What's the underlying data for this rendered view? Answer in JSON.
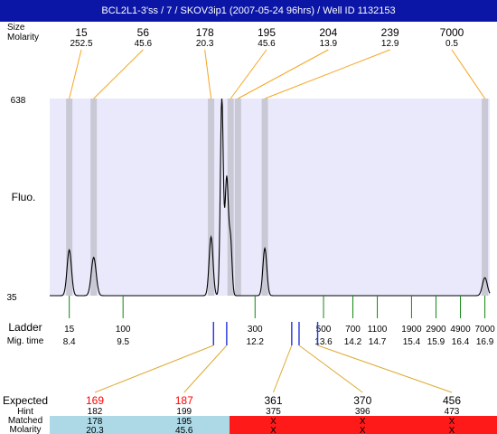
{
  "title": "BCL2L1-3'ss / 7 / SKOV3ip1 (2007-05-24 96hrs) / Well ID 1132153",
  "chart_data": {
    "type": "line",
    "title": "BCL2L1-3'ss / 7 / SKOV3ip1 (2007-05-24 96hrs) / Well ID 1132153",
    "ylabel": "Fluo.",
    "ylim": [
      35,
      638
    ],
    "xlim": [
      8.0,
      17.0
    ],
    "colors": {
      "plot_background": "#e9e9fb",
      "peak_band": "#c9c9d6",
      "top_connector": "#f5a623",
      "ladder_tick": "#118811",
      "expected_tick": "#2233dd",
      "expected_connector": "#ddaa33",
      "matched_ok": "#add8e6",
      "matched_fail": "#ff1a1a",
      "hint_red": "#ff0000",
      "title_bar": "#0b16a6"
    },
    "peaks": {
      "header_size": "Size",
      "header_molarity": "Molarity",
      "items": [
        {
          "size": "15",
          "molarity": "252.5",
          "time": 8.4
        },
        {
          "size": "56",
          "molarity": "45.6",
          "time": 8.9
        },
        {
          "size": "178",
          "molarity": "20.3",
          "time": 11.3
        },
        {
          "size": "195",
          "molarity": "45.6",
          "time": 11.7
        },
        {
          "size": "204",
          "molarity": "13.9",
          "time": 11.85
        },
        {
          "size": "239",
          "molarity": "12.9",
          "time": 12.4
        },
        {
          "size": "7000",
          "molarity": "0.5",
          "time": 16.9
        }
      ]
    },
    "trace": {
      "baseline": 35,
      "peaks": [
        {
          "time": 8.4,
          "height": 175,
          "width": 0.045
        },
        {
          "time": 8.9,
          "height": 152,
          "width": 0.05
        },
        {
          "time": 11.3,
          "height": 215,
          "width": 0.04
        },
        {
          "time": 11.52,
          "height": 638,
          "width": 0.03
        },
        {
          "time": 11.62,
          "height": 395,
          "width": 0.035
        },
        {
          "time": 11.7,
          "height": 195,
          "width": 0.03
        },
        {
          "time": 12.4,
          "height": 180,
          "width": 0.04
        },
        {
          "time": 16.9,
          "height": 90,
          "width": 0.05
        }
      ]
    },
    "ladder": {
      "label": "Ladder",
      "time_label": "Mig. time",
      "items": [
        {
          "size": "15",
          "time": "8.4",
          "t": 8.4
        },
        {
          "size": "100",
          "time": "9.5",
          "t": 9.5
        },
        {
          "size": "300",
          "time": "12.2",
          "t": 12.2
        },
        {
          "size": "500",
          "time": "13.6",
          "t": 13.6
        },
        {
          "size": "700",
          "time": "14.2",
          "t": 14.2
        },
        {
          "size": "1100",
          "time": "14.7",
          "t": 14.7
        },
        {
          "size": "1900",
          "time": "15.4",
          "t": 15.4
        },
        {
          "size": "2900",
          "time": "15.9",
          "t": 15.9
        },
        {
          "size": "4900",
          "time": "16.4",
          "t": 16.4
        },
        {
          "size": "7000",
          "time": "16.9",
          "t": 16.9
        }
      ]
    },
    "expected": {
      "label": "Expected",
      "hint_label": "Hint",
      "matched_label": "Matched",
      "molarity_label": "Molarity",
      "items": [
        {
          "size": "169",
          "hint": "182",
          "matched": "178",
          "molarity": "20.3",
          "status": "ok",
          "t": 11.35
        },
        {
          "size": "187",
          "hint": "199",
          "matched": "195",
          "molarity": "45.6",
          "status": "ok",
          "t": 11.62
        },
        {
          "size": "361",
          "hint": "375",
          "matched": "X",
          "molarity": "X",
          "status": "fail",
          "t": 12.95
        },
        {
          "size": "370",
          "hint": "396",
          "matched": "X",
          "molarity": "X",
          "status": "fail",
          "t": 13.1
        },
        {
          "size": "456",
          "hint": "473",
          "matched": "X",
          "molarity": "X",
          "status": "fail",
          "t": 13.48
        }
      ]
    }
  }
}
